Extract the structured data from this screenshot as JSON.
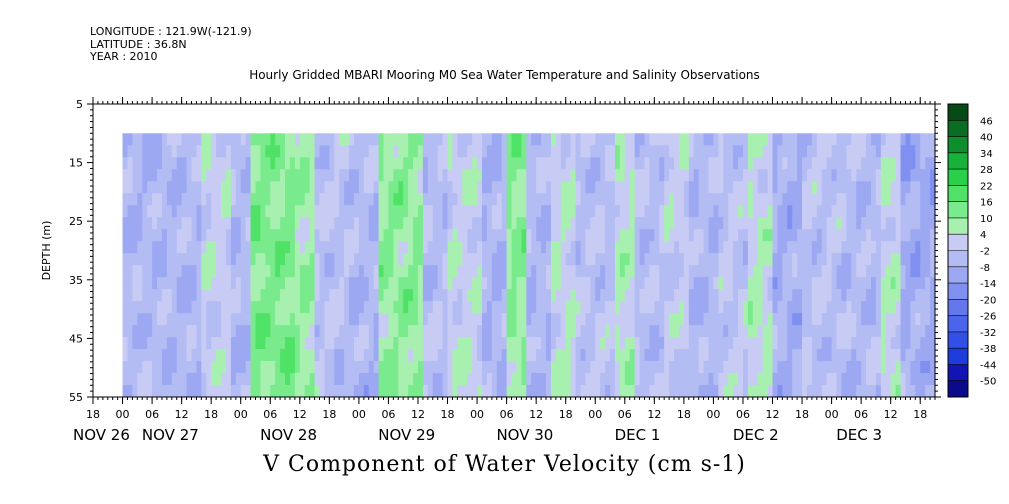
{
  "header": {
    "longitude": "LONGITUDE : 121.9W(-121.9)",
    "latitude": "LATITUDE : 36.8N",
    "year": "YEAR : 2010"
  },
  "chart_data": {
    "type": "heatmap",
    "title": "Hourly Gridded MBARI Mooring M0 Sea Water Temperature and Salinity Observations",
    "xlabel": "V Component of Water Velocity (cm s-1)",
    "ylabel": "DEPTH (m)",
    "ylim": [
      5,
      55
    ],
    "y_ticks": [
      5,
      15,
      25,
      35,
      45,
      55
    ],
    "y_inverted": true,
    "data_depth_top": 10,
    "x_range_hours": [
      0,
      171
    ],
    "x_data_start_hour": 6,
    "x_hour_ticks": [
      {
        "h": 0,
        "label": "18"
      },
      {
        "h": 6,
        "label": "00"
      },
      {
        "h": 12,
        "label": "06"
      },
      {
        "h": 18,
        "label": "12"
      },
      {
        "h": 24,
        "label": "18"
      },
      {
        "h": 30,
        "label": "00"
      },
      {
        "h": 36,
        "label": "06"
      },
      {
        "h": 42,
        "label": "12"
      },
      {
        "h": 48,
        "label": "18"
      },
      {
        "h": 54,
        "label": "00"
      },
      {
        "h": 60,
        "label": "06"
      },
      {
        "h": 66,
        "label": "12"
      },
      {
        "h": 72,
        "label": "18"
      },
      {
        "h": 78,
        "label": "00"
      },
      {
        "h": 84,
        "label": "06"
      },
      {
        "h": 90,
        "label": "12"
      },
      {
        "h": 96,
        "label": "18"
      },
      {
        "h": 102,
        "label": "00"
      },
      {
        "h": 108,
        "label": "06"
      },
      {
        "h": 114,
        "label": "12"
      },
      {
        "h": 120,
        "label": "18"
      },
      {
        "h": 126,
        "label": "00"
      },
      {
        "h": 132,
        "label": "06"
      },
      {
        "h": 138,
        "label": "12"
      },
      {
        "h": 144,
        "label": "18"
      },
      {
        "h": 150,
        "label": "00"
      },
      {
        "h": 156,
        "label": "06"
      },
      {
        "h": 162,
        "label": "12"
      },
      {
        "h": 168,
        "label": "18"
      }
    ],
    "x_day_labels": [
      {
        "h": 0,
        "label": "NOV 26"
      },
      {
        "h": 14,
        "label": "NOV 27"
      },
      {
        "h": 38,
        "label": "NOV 28"
      },
      {
        "h": 62,
        "label": "NOV 29"
      },
      {
        "h": 86,
        "label": "NOV 30"
      },
      {
        "h": 110,
        "label": "DEC  1"
      },
      {
        "h": 134,
        "label": "DEC  2"
      },
      {
        "h": 155,
        "label": "DEC  3"
      }
    ],
    "colorbar": {
      "levels": [
        -50,
        -44,
        -38,
        -32,
        -26,
        -20,
        -14,
        -8,
        -2,
        4,
        10,
        16,
        22,
        28,
        34,
        40,
        46
      ],
      "labels": [
        "46",
        "40",
        "34",
        "28",
        "22",
        "16",
        "10",
        "4",
        "-2",
        "-8",
        "-14",
        "-20",
        "-26",
        "-32",
        "-38",
        "-44",
        "-50"
      ],
      "colors_low_to_high": [
        "#0a0a8a",
        "#1414b4",
        "#1e3cdc",
        "#3250e6",
        "#4a64ea",
        "#6478ec",
        "#8090f0",
        "#9ca8f2",
        "#b4bcf4",
        "#c8ccf4",
        "#a8f0b0",
        "#7aeb8c",
        "#4fe266",
        "#2ad04a",
        "#18b23a",
        "#0e8e2c",
        "#0a6e22",
        "#064a16"
      ]
    },
    "band_pattern": [
      {
        "x0": 6,
        "x1": 22,
        "v": -6
      },
      {
        "x0": 22,
        "x1": 28,
        "v": 1
      },
      {
        "x0": 28,
        "x1": 32,
        "v": -6
      },
      {
        "x0": 32,
        "x1": 41,
        "v": 12
      },
      {
        "x0": 41,
        "x1": 45,
        "v": 8
      },
      {
        "x0": 45,
        "x1": 52,
        "v": -3
      },
      {
        "x0": 52,
        "x1": 58,
        "v": -6
      },
      {
        "x0": 58,
        "x1": 67,
        "v": 10
      },
      {
        "x0": 67,
        "x1": 72,
        "v": -4
      },
      {
        "x0": 72,
        "x1": 79,
        "v": 2
      },
      {
        "x0": 79,
        "x1": 84,
        "v": -7
      },
      {
        "x0": 84,
        "x1": 88,
        "v": 10
      },
      {
        "x0": 88,
        "x1": 93,
        "v": -6
      },
      {
        "x0": 93,
        "x1": 98,
        "v": 3
      },
      {
        "x0": 98,
        "x1": 106,
        "v": -3
      },
      {
        "x0": 106,
        "x1": 110,
        "v": 5
      },
      {
        "x0": 110,
        "x1": 116,
        "v": -4
      },
      {
        "x0": 116,
        "x1": 121,
        "v": 0
      },
      {
        "x0": 121,
        "x1": 127,
        "v": -6
      },
      {
        "x0": 127,
        "x1": 133,
        "v": -2
      },
      {
        "x0": 133,
        "x1": 138,
        "v": 4
      },
      {
        "x0": 138,
        "x1": 144,
        "v": -8
      },
      {
        "x0": 144,
        "x1": 152,
        "v": -3
      },
      {
        "x0": 152,
        "x1": 160,
        "v": -5
      },
      {
        "x0": 160,
        "x1": 164,
        "v": 3
      },
      {
        "x0": 164,
        "x1": 171,
        "v": -9
      }
    ]
  }
}
